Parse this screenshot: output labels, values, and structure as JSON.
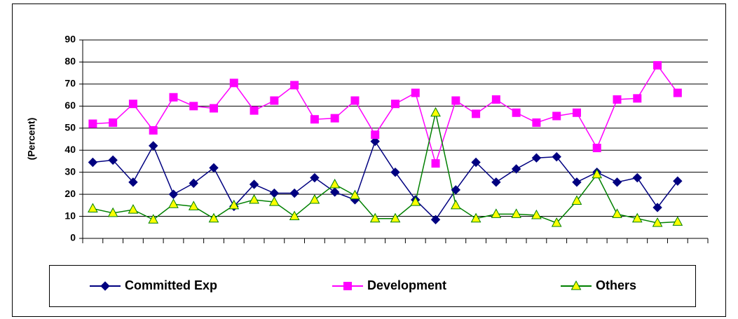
{
  "chart_data": {
    "type": "line",
    "y_label": "(Percent)",
    "categories": [
      null,
      null,
      null,
      null,
      null,
      null,
      null,
      null,
      null,
      null,
      null,
      null,
      null,
      null,
      null,
      null,
      null,
      null,
      null,
      null,
      null,
      null,
      null,
      null,
      null,
      null,
      null,
      null,
      null,
      null,
      null
    ],
    "series": [
      {
        "name": "Committed Exp",
        "color": "#000080",
        "marker": "diamond",
        "marker_color": "#000080",
        "values": [
          34.5,
          35.5,
          25.5,
          42,
          20,
          25,
          32,
          14.5,
          24.5,
          20.5,
          20.5,
          27.5,
          21,
          17.5,
          44,
          30,
          17.5,
          8.5,
          22,
          34.5,
          25.5,
          31.5,
          36.5,
          37,
          25.5,
          30,
          25.5,
          27.5,
          14,
          26,
          null
        ]
      },
      {
        "name": "Development",
        "color": "#ff00ff",
        "marker": "square",
        "marker_color": "#ff00ff",
        "values": [
          52,
          52.5,
          61,
          49,
          64,
          60,
          59,
          70.5,
          58,
          62.5,
          69.5,
          54,
          54.5,
          62.5,
          47,
          61,
          66,
          34,
          62.5,
          56.5,
          63,
          57,
          52.5,
          55.5,
          57,
          41,
          63,
          63.5,
          78.5,
          66,
          null
        ]
      },
      {
        "name": "Others",
        "color": "#008000",
        "marker": "triangle",
        "marker_color": "#ffff00",
        "values": [
          13.5,
          11.5,
          13,
          8.5,
          15.5,
          14.5,
          9,
          15,
          17.5,
          16.5,
          10,
          17.5,
          24.5,
          19.5,
          9,
          9,
          16.5,
          57,
          15,
          9,
          11,
          11,
          10.5,
          7,
          17,
          29,
          11,
          9,
          7,
          7.5,
          null
        ]
      }
    ],
    "ylim": [
      0,
      90
    ],
    "yticks": [
      0,
      10,
      20,
      30,
      40,
      50,
      60,
      70,
      80,
      90
    ],
    "grid": true,
    "legend": "bottom"
  }
}
